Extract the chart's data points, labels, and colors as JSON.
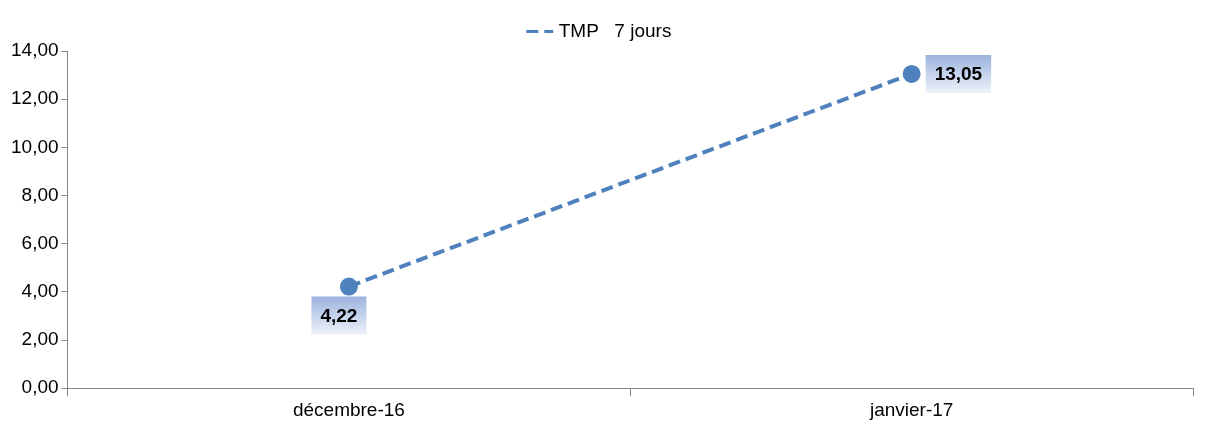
{
  "chart_data": {
    "type": "line",
    "categories": [
      "décembre-16",
      "janvier-17"
    ],
    "series": [
      {
        "name": "TMP   7 jours",
        "color": "#4f81bd",
        "values": [
          4.22,
          13.05
        ],
        "value_labels": [
          "4,22",
          "13,05"
        ]
      }
    ],
    "ylim": [
      0,
      14
    ],
    "yticks": [
      {
        "value": 0,
        "label": "0,00"
      },
      {
        "value": 2,
        "label": "2,00"
      },
      {
        "value": 4,
        "label": "4,00"
      },
      {
        "value": 6,
        "label": "6,00"
      },
      {
        "value": 8,
        "label": "8,00"
      },
      {
        "value": 10,
        "label": "10,00"
      },
      {
        "value": 12,
        "label": "12,00"
      },
      {
        "value": 14,
        "label": "14,00"
      }
    ],
    "grid": false,
    "legend": "top",
    "marker": "circle",
    "line_style": "dashed"
  }
}
